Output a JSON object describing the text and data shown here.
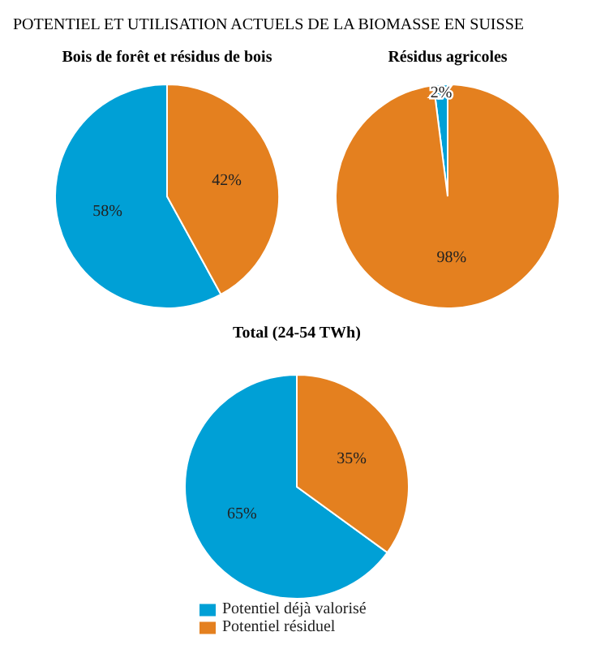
{
  "chart_data": [
    {
      "type": "pie",
      "annotations": [
        "POTENTIEL ET UTILISATION ACTUELS DE LA BIOMASSE EN SUISSE"
      ],
      "title": "Bois de forêt et résidus de bois",
      "values": [
        58,
        42
      ],
      "colors": [
        "#00a0d6",
        "#e4801f"
      ],
      "value_labels": [
        "58%",
        "42%"
      ]
    },
    {
      "type": "pie",
      "title": "Résidus agricoles",
      "values": [
        2,
        98
      ],
      "colors": [
        "#00a0d6",
        "#e4801f"
      ],
      "value_labels": [
        "2%",
        "98%"
      ]
    },
    {
      "type": "pie",
      "title": "Total (24-54 TWh)",
      "categories": [
        "Potentiel déjà valorisé",
        "Potentiel résiduel"
      ],
      "values": [
        65,
        35
      ],
      "colors": [
        "#00a0d6",
        "#e4801f"
      ],
      "value_labels": [
        "65%",
        "35%"
      ],
      "legend": "bottom"
    }
  ]
}
